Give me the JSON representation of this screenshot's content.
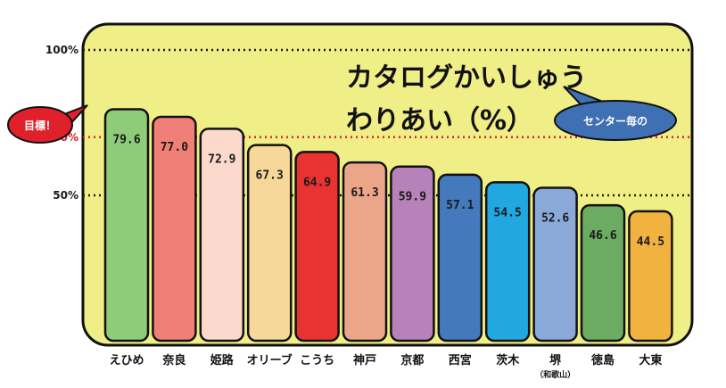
{
  "chart_data": {
    "type": "bar",
    "title_line1": "カタログかいしゅう",
    "title_line2": "わりあい（%）",
    "categories": [
      "えひめ",
      "奈良",
      "姫路",
      "オリーブ",
      "こうち",
      "神戸",
      "京都",
      "西宮",
      "茨木",
      "堺",
      "徳島",
      "大東"
    ],
    "category_sublabels": [
      "",
      "",
      "",
      "",
      "",
      "",
      "",
      "",
      "",
      "（和歌山）",
      "",
      ""
    ],
    "values": [
      79.6,
      77.0,
      72.9,
      67.3,
      64.9,
      61.3,
      59.9,
      57.1,
      54.5,
      52.6,
      46.6,
      44.5
    ],
    "value_labels": [
      "79.6",
      "77.0",
      "72.9",
      "67.3",
      "64.9",
      "61.3",
      "59.9",
      "57.1",
      "54.5",
      "52.6",
      "46.6",
      "44.5"
    ],
    "bar_colors": [
      "#8fcc7a",
      "#f07f78",
      "#fbd9cc",
      "#f6d99a",
      "#e93232",
      "#eba588",
      "#b682b9",
      "#4479bd",
      "#22a8e0",
      "#8ba9d8",
      "#6bab62",
      "#f1b23f"
    ],
    "ylim": [
      0,
      100
    ],
    "gridlines": [
      {
        "value": 100,
        "label": "100%",
        "color": "#1a1a1a"
      },
      {
        "value": 70,
        "label": "70%",
        "color": "#e0202a"
      },
      {
        "value": 50,
        "label": "50%",
        "color": "#1a1a1a"
      }
    ],
    "target_callout": "目標！",
    "note_bubble": "センター毎の",
    "panel_color": "#f0ee86",
    "target_color": "#e0202a",
    "bubble_color": "#3e70b3"
  }
}
